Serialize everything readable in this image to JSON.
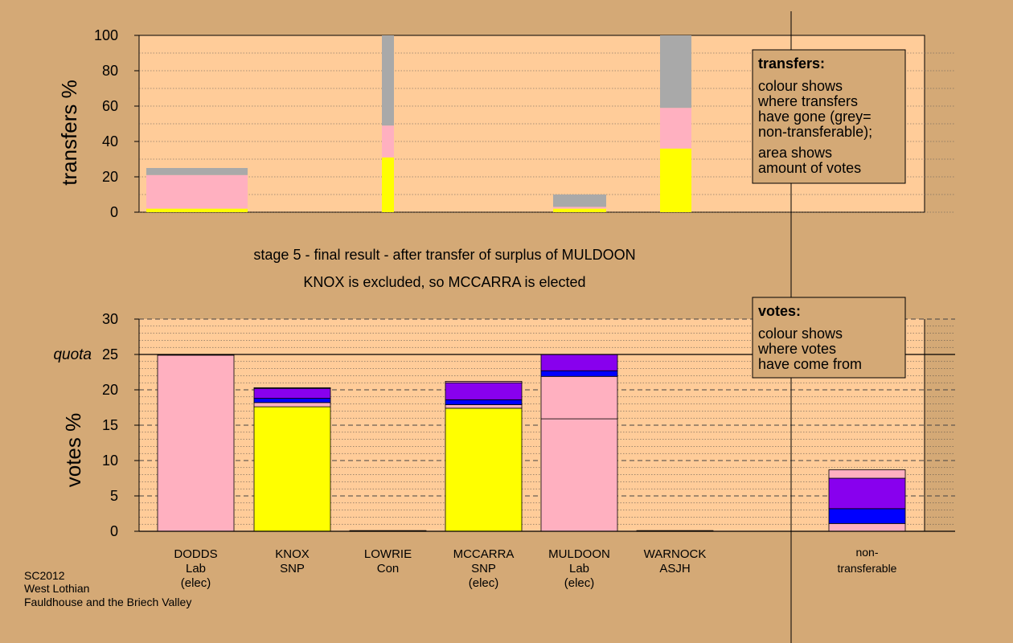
{
  "colors": {
    "page_bg": "#D4A976",
    "plot_bg": "#FFCC99",
    "lab": "#FFB0C0",
    "snp": "#FFFF00",
    "nontransferable": "#A9A9A9",
    "purple": "#8800EE",
    "blue": "#0000FF"
  },
  "stage_title": "stage 5 - final result - after transfer of surplus of MULDOON",
  "stage_subtitle": "KNOX is excluded, so MCCARRA is elected",
  "footer": {
    "line1": "SC2012",
    "line2": "West Lothian",
    "line3": "Fauldhouse and the Briech Valley"
  },
  "legend_transfers": {
    "title": "transfers:",
    "line1": "colour shows",
    "line2": "where transfers",
    "line3": "have gone (grey=",
    "line4": "non-transferable);",
    "line5": "area shows",
    "line6": "amount of votes"
  },
  "legend_votes": {
    "title": "votes:",
    "line1": "colour shows",
    "line2": "where votes",
    "line3": "have come from"
  },
  "candidates": [
    {
      "label1": "DODDS",
      "label2": "Lab",
      "label3": "(elec)"
    },
    {
      "label1": "KNOX",
      "label2": "SNP",
      "label3": ""
    },
    {
      "label1": "LOWRIE",
      "label2": "Con",
      "label3": ""
    },
    {
      "label1": "MCCARRA",
      "label2": "SNP",
      "label3": "(elec)"
    },
    {
      "label1": "MULDOON",
      "label2": "Lab",
      "label3": "(elec)"
    },
    {
      "label1": "WARNOCK",
      "label2": "ASJH",
      "label3": ""
    }
  ],
  "nontransferable_label": {
    "label1": "non-",
    "label2": "transferable"
  },
  "chart_data": [
    {
      "type": "bar",
      "stacked": true,
      "ylabel": "transfers %",
      "ylim": [
        0,
        100
      ],
      "yticks": [
        0,
        20,
        40,
        60,
        80,
        100
      ],
      "grid": true,
      "note": "bar width proportional to amount of votes transferred",
      "bars": [
        {
          "candidate": "DODDS",
          "width_share": 1.0,
          "segments": [
            {
              "color": "snp",
              "value": 2
            },
            {
              "color": "lab",
              "value": 19
            },
            {
              "color": "nontransferable",
              "value": 4
            }
          ]
        },
        {
          "candidate": "LOWRIE",
          "width_share": 0.12,
          "segments": [
            {
              "color": "snp",
              "value": 31
            },
            {
              "color": "lab",
              "value": 18
            },
            {
              "color": "nontransferable",
              "value": 51
            }
          ]
        },
        {
          "candidate": "MULDOON",
          "width_share": 0.5,
          "segments": [
            {
              "color": "snp",
              "value": 2
            },
            {
              "color": "lab",
              "value": 1
            },
            {
              "color": "nontransferable",
              "value": 7
            }
          ]
        },
        {
          "candidate": "WARNOCK",
          "width_share": 0.3,
          "segments": [
            {
              "color": "snp",
              "value": 36
            },
            {
              "color": "lab",
              "value": 23
            },
            {
              "color": "nontransferable",
              "value": 41
            }
          ]
        }
      ]
    },
    {
      "type": "bar",
      "stacked": true,
      "ylabel": "votes %",
      "ylim": [
        0,
        30
      ],
      "yticks": [
        0,
        5,
        10,
        15,
        20,
        25,
        30
      ],
      "quota": 25,
      "quota_label": "quota",
      "grid": true,
      "bars": [
        {
          "candidate": "DODDS",
          "segments": [
            {
              "color": "lab",
              "value": 24.9
            },
            {
              "color": "snp",
              "value": 0.1
            }
          ]
        },
        {
          "candidate": "KNOX",
          "segments": [
            {
              "color": "snp",
              "value": 17.6
            },
            {
              "color": "lab",
              "value": 0.6
            },
            {
              "color": "blue",
              "value": 0.6
            },
            {
              "color": "purple",
              "value": 1.4
            },
            {
              "color": "lab",
              "value": 0.1
            }
          ]
        },
        {
          "candidate": "LOWRIE",
          "segments": [
            {
              "color": "lab",
              "value": 0.1
            }
          ]
        },
        {
          "candidate": "MCCARRA",
          "segments": [
            {
              "color": "snp",
              "value": 17.4
            },
            {
              "color": "lab",
              "value": 0.5
            },
            {
              "color": "blue",
              "value": 0.7
            },
            {
              "color": "purple",
              "value": 2.4
            },
            {
              "color": "lab",
              "value": 0.2
            }
          ]
        },
        {
          "candidate": "MULDOON",
          "segments": [
            {
              "color": "lab",
              "value": 15.9
            },
            {
              "color": "lab",
              "value": 6.0
            },
            {
              "color": "blue",
              "value": 0.8
            },
            {
              "color": "purple",
              "value": 2.3
            }
          ]
        },
        {
          "candidate": "WARNOCK",
          "segments": [
            {
              "color": "lab",
              "value": 0.1
            }
          ]
        },
        {
          "candidate": "non-transferable",
          "segments": [
            {
              "color": "lab",
              "value": 1.1
            },
            {
              "color": "blue",
              "value": 2.1
            },
            {
              "color": "purple",
              "value": 4.3
            },
            {
              "color": "lab",
              "value": 1.2
            }
          ]
        }
      ]
    }
  ]
}
